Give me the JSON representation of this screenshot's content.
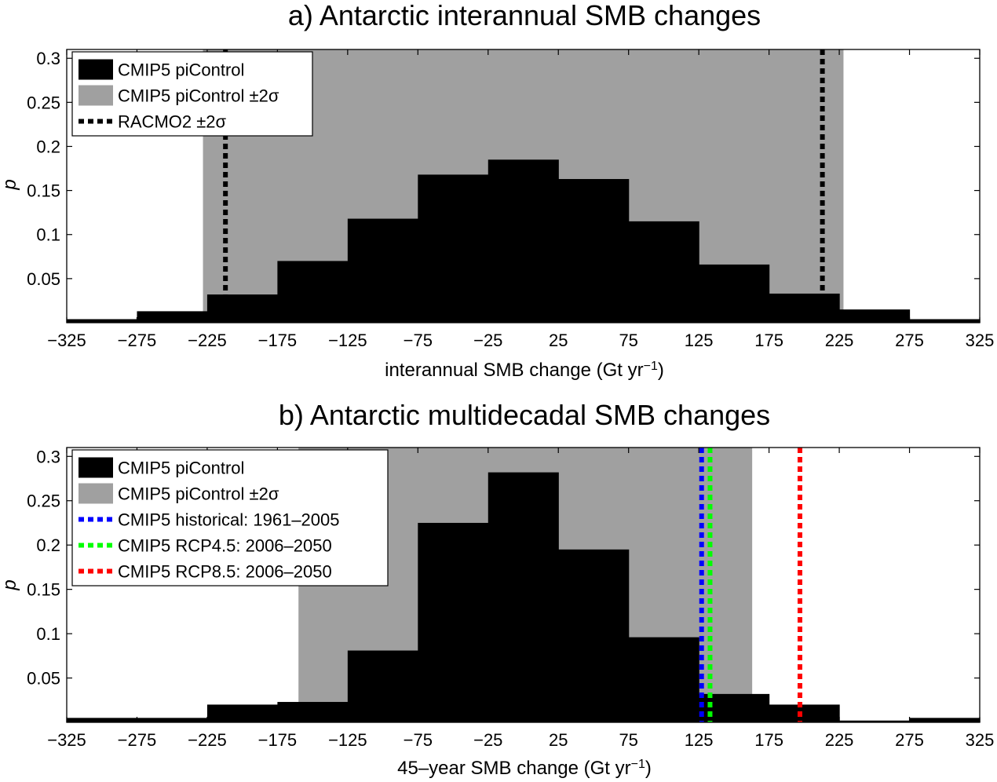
{
  "chart_data": [
    {
      "type": "bar",
      "title": "a) Antarctic interannual SMB changes",
      "xlabel": "interannual SMB change (Gt yr",
      "xlabel_sup": "−1",
      "xlabel_end": ")",
      "ylabel": "p",
      "xlim": [
        -325,
        325
      ],
      "ylim": [
        0,
        0.31
      ],
      "xticks": [
        -325,
        -275,
        -225,
        -175,
        -125,
        -75,
        -25,
        25,
        75,
        125,
        175,
        225,
        275,
        325
      ],
      "xtick_labels": [
        "−325",
        "−275",
        "−225",
        "−175",
        "−125",
        "−75",
        "−25",
        "25",
        "75",
        "125",
        "175",
        "225",
        "275",
        "325"
      ],
      "yticks": [
        0.05,
        0.1,
        0.15,
        0.2,
        0.25,
        0.3
      ],
      "ytick_labels": [
        "0.05",
        "0.1",
        "0.15",
        "0.2",
        "0.25",
        "0.3"
      ],
      "bin_edges": [
        -325,
        -275,
        -225,
        -175,
        -125,
        -75,
        -25,
        25,
        75,
        125,
        175,
        225,
        275,
        325
      ],
      "series": [
        {
          "name": "CMIP5 piControl",
          "color": "#000000",
          "values": [
            0.004,
            0.013,
            0.032,
            0.07,
            0.118,
            0.168,
            0.185,
            0.163,
            0.115,
            0.066,
            0.033,
            0.015,
            0.004
          ]
        }
      ],
      "shaded_band": {
        "name": "CMIP5 piControl ±2σ",
        "color": "#a0a0a0",
        "range": [
          -228,
          228
        ]
      },
      "vlines": [
        {
          "name": "RACMO2 ±2σ",
          "color": "#000000",
          "x": -212,
          "label_index": 0
        },
        {
          "name": "",
          "color": "#000000",
          "x": 213
        }
      ],
      "legend": [
        "CMIP5 piControl",
        "CMIP5 piControl ±2σ",
        "RACMO2 ±2σ"
      ],
      "legend_position": "top-left"
    },
    {
      "type": "bar",
      "title": "b) Antarctic multidecadal SMB changes",
      "xlabel": "45–year SMB change (Gt yr",
      "xlabel_sup": "−1",
      "xlabel_end": ")",
      "ylabel": "p",
      "xlim": [
        -325,
        325
      ],
      "ylim": [
        0,
        0.31
      ],
      "xticks": [
        -325,
        -275,
        -225,
        -175,
        -125,
        -75,
        -25,
        25,
        75,
        125,
        175,
        225,
        275,
        325
      ],
      "xtick_labels": [
        "−325",
        "−275",
        "−225",
        "−175",
        "−125",
        "−75",
        "−25",
        "25",
        "75",
        "125",
        "175",
        "225",
        "275",
        "325"
      ],
      "yticks": [
        0.05,
        0.1,
        0.15,
        0.2,
        0.25,
        0.3
      ],
      "ytick_labels": [
        "0.05",
        "0.1",
        "0.15",
        "0.2",
        "0.25",
        "0.3"
      ],
      "bin_edges": [
        -325,
        -275,
        -225,
        -175,
        -125,
        -75,
        -25,
        25,
        75,
        125,
        175,
        225,
        275,
        325
      ],
      "series": [
        {
          "name": "CMIP5 piControl",
          "color": "#000000",
          "values": [
            0.005,
            0.005,
            0.02,
            0.023,
            0.081,
            0.225,
            0.282,
            0.195,
            0.096,
            0.032,
            0.02,
            0.002,
            0.005
          ]
        }
      ],
      "shaded_band": {
        "name": "CMIP5 piControl ±2σ",
        "color": "#a0a0a0",
        "range": [
          -160,
          163
        ]
      },
      "vlines": [
        {
          "name": "CMIP5 historical: 1961–2005",
          "color": "#0000ff",
          "x": 127
        },
        {
          "name": "CMIP5 RCP4.5: 2006–2050",
          "color": "#00ff00",
          "x": 133
        },
        {
          "name": "CMIP5 RCP8.5: 2006–2050",
          "color": "#ff0000",
          "x": 197
        }
      ],
      "legend": [
        "CMIP5 piControl",
        "CMIP5 piControl ±2σ",
        "CMIP5 historical: 1961–2005",
        "CMIP5 RCP4.5: 2006–2050",
        "CMIP5 RCP8.5: 2006–2050"
      ],
      "legend_position": "top-left"
    }
  ]
}
